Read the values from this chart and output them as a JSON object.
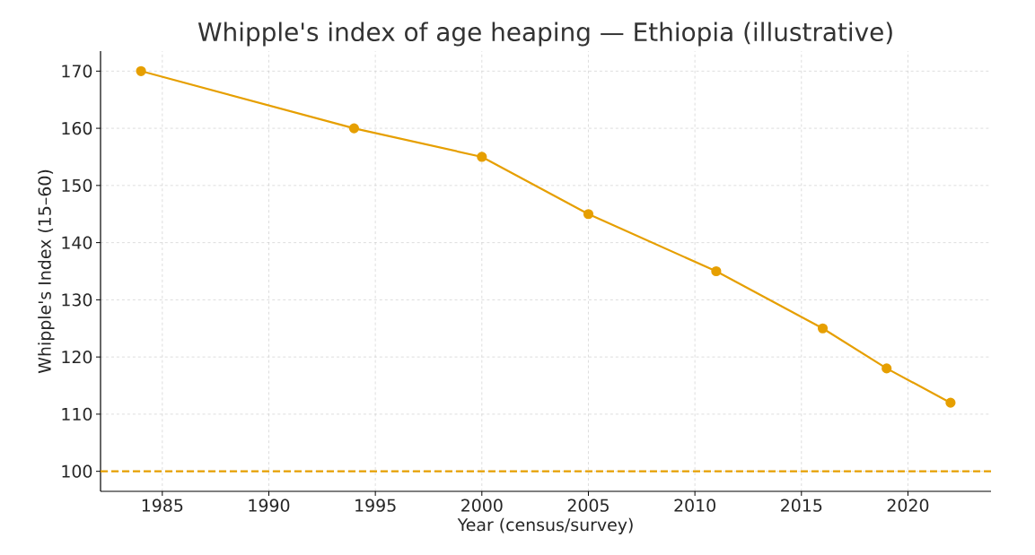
{
  "chart_data": {
    "type": "line",
    "title": "Whipple's index of age heaping — Ethiopia (illustrative)",
    "xlabel": "Year (census/survey)",
    "ylabel": "Whipple's Index (15–60)",
    "x": [
      1984,
      1994,
      2000,
      2005,
      2011,
      2016,
      2019,
      2022
    ],
    "series": [
      {
        "color": "#e69f00",
        "values": [
          170,
          160,
          155,
          145,
          135,
          125,
          118,
          112
        ]
      }
    ],
    "xlim": [
      1982.1,
      2023.9
    ],
    "xticks": [
      1985,
      1990,
      1995,
      2000,
      2005,
      2010,
      2015,
      2020
    ],
    "ylim": [
      96.5,
      173.5
    ],
    "yticks": [
      100,
      110,
      120,
      130,
      140,
      150,
      160,
      170
    ],
    "ref_lines": [
      {
        "axis": "y",
        "value": 100,
        "color": "#e69f00",
        "line_style": "dashed"
      }
    ],
    "grid": true,
    "marker": "circle",
    "line_style": "solid"
  }
}
